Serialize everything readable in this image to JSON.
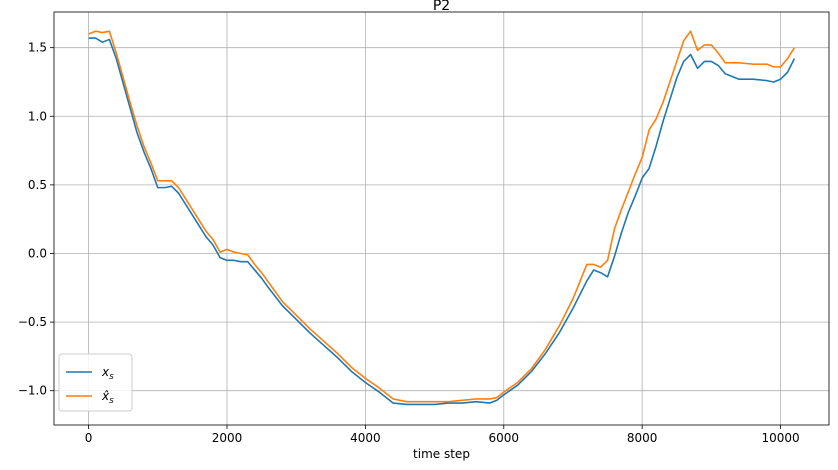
{
  "chart_data": {
    "type": "line",
    "title": "P2",
    "xlabel": "time step",
    "ylabel": "",
    "xlim": [
      -500,
      10700
    ],
    "ylim": [
      -1.25,
      1.76
    ],
    "xticks": [
      0,
      2000,
      4000,
      6000,
      8000,
      10000
    ],
    "xtick_labels": [
      "0",
      "2000",
      "4000",
      "6000",
      "8000",
      "10000"
    ],
    "yticks": [
      -1.0,
      -0.5,
      0.0,
      0.5,
      1.0,
      1.5
    ],
    "ytick_labels": [
      "−1.0",
      "−0.5",
      "0.0",
      "0.5",
      "1.0",
      "1.5"
    ],
    "grid": true,
    "legend_position": "lower-left",
    "series": [
      {
        "name_base": "x",
        "name_sub": "s",
        "color": "#1f77b4",
        "x": [
          0,
          100,
          200,
          300,
          400,
          500,
          600,
          700,
          800,
          900,
          1000,
          1100,
          1200,
          1300,
          1400,
          1500,
          1600,
          1700,
          1800,
          1900,
          2000,
          2100,
          2200,
          2300,
          2400,
          2500,
          2600,
          2800,
          3000,
          3200,
          3400,
          3600,
          3800,
          4000,
          4200,
          4400,
          4600,
          4800,
          5000,
          5200,
          5400,
          5600,
          5800,
          5900,
          6000,
          6200,
          6400,
          6600,
          6800,
          7000,
          7200,
          7300,
          7400,
          7500,
          7600,
          7700,
          7800,
          7900,
          8000,
          8100,
          8200,
          8300,
          8400,
          8500,
          8600,
          8700,
          8800,
          8900,
          9000,
          9100,
          9200,
          9400,
          9600,
          9800,
          9900,
          10000,
          10100,
          10200
        ],
        "y": [
          1.57,
          1.57,
          1.54,
          1.56,
          1.42,
          1.24,
          1.06,
          0.88,
          0.74,
          0.62,
          0.48,
          0.48,
          0.49,
          0.44,
          0.36,
          0.28,
          0.2,
          0.12,
          0.06,
          -0.03,
          -0.05,
          -0.05,
          -0.06,
          -0.06,
          -0.12,
          -0.18,
          -0.25,
          -0.38,
          -0.48,
          -0.58,
          -0.67,
          -0.76,
          -0.86,
          -0.94,
          -1.01,
          -1.09,
          -1.1,
          -1.1,
          -1.1,
          -1.09,
          -1.09,
          -1.08,
          -1.09,
          -1.07,
          -1.03,
          -0.96,
          -0.86,
          -0.73,
          -0.58,
          -0.4,
          -0.2,
          -0.12,
          -0.14,
          -0.17,
          -0.02,
          0.15,
          0.3,
          0.42,
          0.55,
          0.62,
          0.78,
          0.96,
          1.12,
          1.28,
          1.4,
          1.45,
          1.35,
          1.4,
          1.4,
          1.37,
          1.31,
          1.27,
          1.27,
          1.26,
          1.25,
          1.27,
          1.32,
          1.42
        ]
      },
      {
        "name_base": "x̂",
        "name_sub": "s",
        "color": "#ff7f0e",
        "x": [
          0,
          100,
          200,
          300,
          400,
          500,
          600,
          700,
          800,
          900,
          1000,
          1100,
          1200,
          1300,
          1400,
          1500,
          1600,
          1700,
          1800,
          1900,
          2000,
          2100,
          2200,
          2300,
          2400,
          2500,
          2600,
          2800,
          3000,
          3200,
          3400,
          3600,
          3800,
          4000,
          4200,
          4400,
          4600,
          4800,
          5000,
          5200,
          5400,
          5600,
          5800,
          5900,
          6000,
          6200,
          6400,
          6600,
          6800,
          7000,
          7200,
          7300,
          7400,
          7500,
          7600,
          7700,
          7800,
          7900,
          8000,
          8100,
          8200,
          8300,
          8400,
          8500,
          8600,
          8700,
          8800,
          8900,
          9000,
          9100,
          9200,
          9400,
          9600,
          9800,
          9900,
          10000,
          10100,
          10200
        ],
        "y": [
          1.6,
          1.62,
          1.61,
          1.62,
          1.46,
          1.28,
          1.1,
          0.93,
          0.78,
          0.66,
          0.53,
          0.53,
          0.53,
          0.48,
          0.4,
          0.32,
          0.24,
          0.16,
          0.1,
          0.01,
          0.03,
          0.01,
          0.0,
          -0.01,
          -0.08,
          -0.14,
          -0.21,
          -0.35,
          -0.45,
          -0.55,
          -0.64,
          -0.73,
          -0.83,
          -0.91,
          -0.98,
          -1.06,
          -1.08,
          -1.08,
          -1.08,
          -1.08,
          -1.07,
          -1.06,
          -1.06,
          -1.05,
          -1.01,
          -0.94,
          -0.84,
          -0.7,
          -0.53,
          -0.33,
          -0.08,
          -0.08,
          -0.1,
          -0.05,
          0.18,
          0.32,
          0.45,
          0.58,
          0.7,
          0.9,
          0.98,
          1.1,
          1.25,
          1.4,
          1.55,
          1.62,
          1.48,
          1.52,
          1.52,
          1.46,
          1.39,
          1.39,
          1.38,
          1.38,
          1.36,
          1.36,
          1.42,
          1.5
        ]
      }
    ]
  }
}
